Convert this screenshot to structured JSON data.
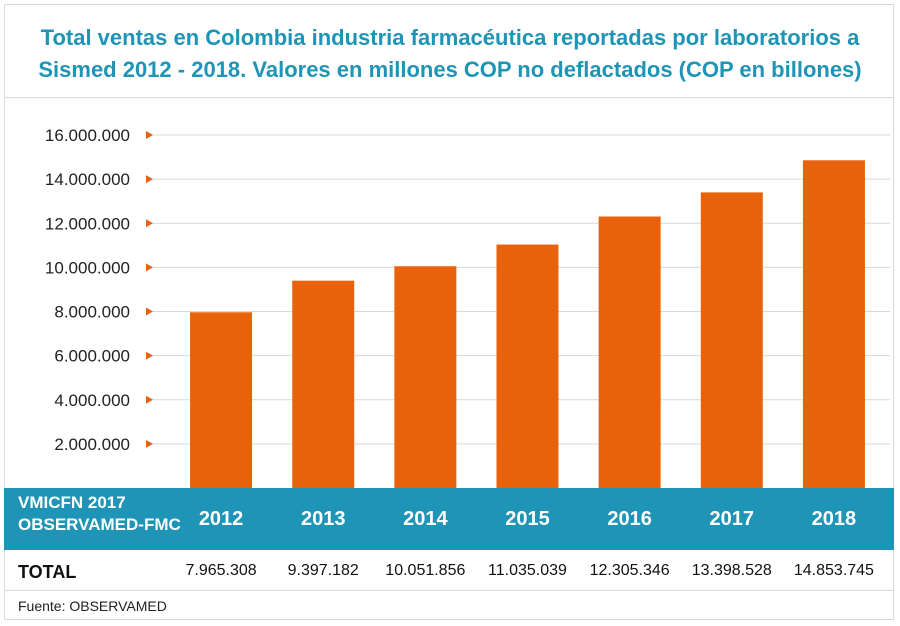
{
  "colors": {
    "accent": "#1e95b6",
    "bar": "#e8620c",
    "text": "#222222",
    "grid": "#d9d9d9"
  },
  "chart_data": {
    "type": "bar",
    "title": "Total ventas en Colombia industria farmacéutica reportadas por laboratorios a Sismed 2012 - 2018. Valores en millones COP no deflactados (COP en billones)",
    "title_line1": "Total ventas en Colombia industria farmacéutica reportadas por laboratorios a",
    "title_line2": "Sismed 2012 - 2018. Valores en millones COP no deflactados (COP en billones)",
    "categories": [
      "2012",
      "2013",
      "2014",
      "2015",
      "2016",
      "2017",
      "2018"
    ],
    "values": [
      7965308,
      9397182,
      10051856,
      11035039,
      12305346,
      13398528,
      14853745
    ],
    "value_labels": [
      "7.965.308",
      "9.397.182",
      "10.051.856",
      "11.035.039",
      "12.305.346",
      "13.398.528",
      "14.853.745"
    ],
    "yticks": [
      2000000,
      4000000,
      6000000,
      8000000,
      10000000,
      12000000,
      14000000,
      16000000
    ],
    "ytick_labels": [
      "2.000.000",
      "4.000.000",
      "6.000.000",
      "8.000.000",
      "10.000.000",
      "12.000.000",
      "14.000.000",
      "16.000.000"
    ],
    "ylim": [
      0,
      16000000
    ],
    "grid": true,
    "row_header_line1": "VMICFN 2017",
    "row_header_line2": "OBSERVAMED-FMC",
    "total_label": "TOTAL",
    "source": "Fuente: OBSERVAMED"
  }
}
